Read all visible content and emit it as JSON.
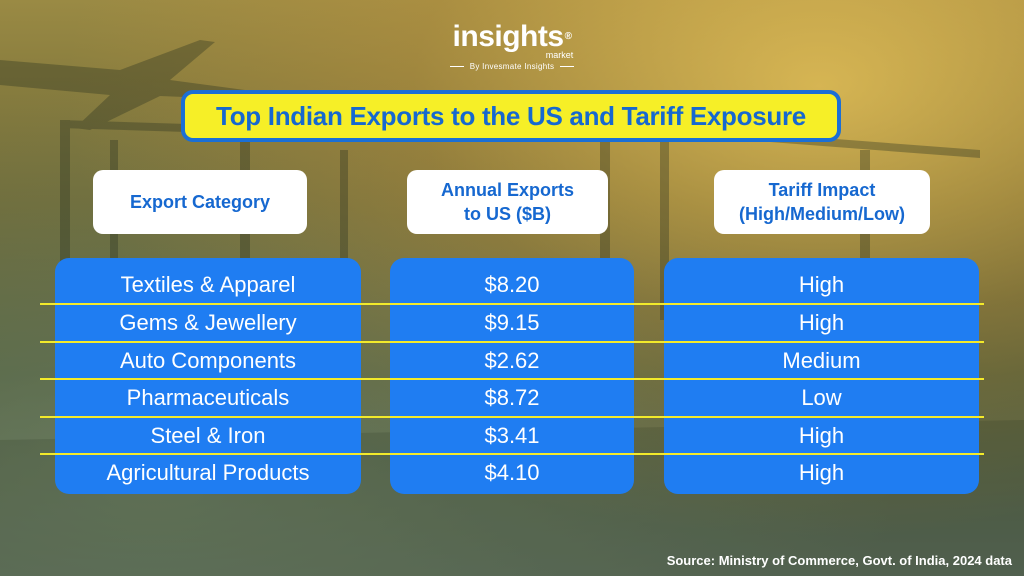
{
  "brand": {
    "logo": "insights",
    "reg_mark": "®",
    "sub": "market",
    "by": "By Invesmate Insights"
  },
  "chart_data": {
    "type": "table",
    "title": "Top Indian Exports to the US and Tariff Exposure",
    "columns": [
      "Export Category",
      "Annual Exports to US ($B)",
      "Tariff Impact (High/Medium/Low)"
    ],
    "header_lines": {
      "col1": [
        "Export Category"
      ],
      "col2": [
        "Annual Exports",
        "to US ($B)"
      ],
      "col3": [
        "Tariff Impact",
        "(High/Medium/Low)"
      ]
    },
    "rows": [
      {
        "category": "Textiles & Apparel",
        "exports": "$8.20",
        "impact": "High"
      },
      {
        "category": "Gems & Jewellery",
        "exports": "$9.15",
        "impact": "High"
      },
      {
        "category": "Auto Components",
        "exports": "$2.62",
        "impact": "Medium"
      },
      {
        "category": "Pharmaceuticals",
        "exports": "$8.72",
        "impact": "Low"
      },
      {
        "category": "Steel & Iron",
        "exports": "$3.41",
        "impact": "High"
      },
      {
        "category": "Agricultural Products",
        "exports": "$4.10",
        "impact": "High"
      }
    ]
  },
  "source": "Source: Ministry of Commerce, Govt. of India, 2024 data",
  "colors": {
    "title_bg": "#f6ef27",
    "title_text": "#1668d0",
    "cell_bg": "#1f7df2",
    "divider": "#f3ea2a",
    "header_bg": "#ffffff"
  }
}
